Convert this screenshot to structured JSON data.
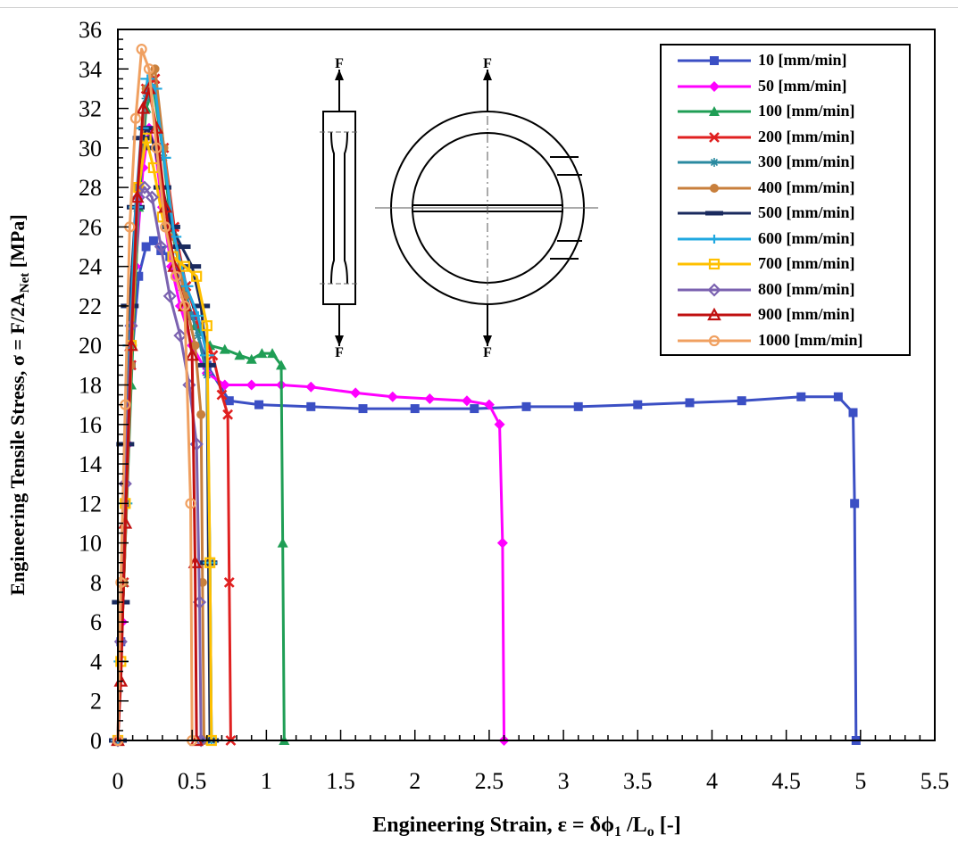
{
  "chart_data": {
    "type": "line",
    "title": "",
    "xlabel": "Engineering Strain, ε = δϕ₁ /Lₒ [-]",
    "ylabel": "Engineering Tensile Stress, σ = F/2A_Net [MPa]",
    "xlim": [
      0,
      5.5
    ],
    "ylim": [
      0,
      36
    ],
    "x_ticks": [
      "0",
      "0.5",
      "1",
      "1.5",
      "2",
      "2.5",
      "3",
      "3.5",
      "4",
      "4.5",
      "5",
      "5.5"
    ],
    "y_ticks": [
      "0",
      "2",
      "4",
      "6",
      "8",
      "10",
      "12",
      "14",
      "16",
      "18",
      "20",
      "22",
      "24",
      "26",
      "28",
      "30",
      "32",
      "34",
      "36"
    ],
    "grid": false,
    "legend_position": "top-right",
    "inset": {
      "force_label": "F"
    },
    "series": [
      {
        "name": "10 [mm/min]",
        "color": "#3b4fc4",
        "marker": "square",
        "x": [
          0,
          0.02,
          0.05,
          0.09,
          0.14,
          0.19,
          0.24,
          0.29,
          0.35,
          0.42,
          0.5,
          0.6,
          0.75,
          0.95,
          1.3,
          1.65,
          2.0,
          2.4,
          2.75,
          3.1,
          3.5,
          3.85,
          4.2,
          4.6,
          4.85,
          4.95,
          4.96,
          4.97
        ],
        "y": [
          0,
          5,
          12,
          19,
          23.5,
          25,
          25.3,
          24.8,
          24.5,
          23.5,
          21.5,
          19,
          17.2,
          17,
          16.9,
          16.8,
          16.8,
          16.8,
          16.9,
          16.9,
          17,
          17.1,
          17.2,
          17.4,
          17.4,
          16.6,
          12,
          0
        ]
      },
      {
        "name": "50 [mm/min]",
        "color": "#ff00ff",
        "marker": "diamond",
        "x": [
          0,
          0.03,
          0.07,
          0.12,
          0.17,
          0.21,
          0.25,
          0.3,
          0.36,
          0.42,
          0.5,
          0.6,
          0.72,
          0.9,
          1.1,
          1.3,
          1.6,
          1.85,
          2.1,
          2.35,
          2.5,
          2.57,
          2.59,
          2.6
        ],
        "y": [
          0,
          6,
          15,
          24,
          29,
          31,
          30,
          27,
          24,
          22,
          20,
          18.6,
          18,
          18,
          18,
          17.9,
          17.6,
          17.4,
          17.3,
          17.2,
          17,
          16,
          10,
          0
        ]
      },
      {
        "name": "100 [mm/min]",
        "color": "#1f9e55",
        "marker": "triangle",
        "x": [
          0,
          0.04,
          0.09,
          0.14,
          0.19,
          0.24,
          0.3,
          0.36,
          0.44,
          0.52,
          0.62,
          0.72,
          0.82,
          0.9,
          0.97,
          1.04,
          1.1,
          1.11,
          1.12
        ],
        "y": [
          0,
          8,
          18,
          27,
          32,
          33,
          30,
          26,
          23,
          21,
          20,
          19.8,
          19.5,
          19.3,
          19.6,
          19.6,
          19,
          10,
          0
        ]
      },
      {
        "name": "200 [mm/min]",
        "color": "#e02020",
        "marker": "x",
        "x": [
          0,
          0.04,
          0.09,
          0.14,
          0.19,
          0.25,
          0.31,
          0.38,
          0.46,
          0.55,
          0.64,
          0.7,
          0.74,
          0.75,
          0.76
        ],
        "y": [
          0,
          8,
          19,
          28,
          33,
          33.5,
          30,
          26,
          23,
          21,
          19.5,
          17.5,
          16.5,
          8,
          0
        ]
      },
      {
        "name": "300 [mm/min]",
        "color": "#2a8aa0",
        "marker": "asterisk",
        "x": [
          0,
          0.04,
          0.09,
          0.14,
          0.19,
          0.25,
          0.31,
          0.38,
          0.46,
          0.54,
          0.6,
          0.62,
          0.63
        ],
        "y": [
          0,
          8,
          19,
          28,
          32.5,
          33,
          29.5,
          25.5,
          22.5,
          20.5,
          18.5,
          9,
          0
        ]
      },
      {
        "name": "400 [mm/min]",
        "color": "#c87f3c",
        "marker": "circle",
        "x": [
          0,
          0.04,
          0.09,
          0.14,
          0.19,
          0.25,
          0.31,
          0.38,
          0.45,
          0.52,
          0.56,
          0.57,
          0.58
        ],
        "y": [
          0,
          8,
          19,
          28,
          33,
          34,
          30,
          25.5,
          22.5,
          20,
          16.5,
          8,
          0
        ]
      },
      {
        "name": "500 [mm/min]",
        "color": "#1a2a5e",
        "marker": "bar",
        "x": [
          0,
          0.02,
          0.05,
          0.08,
          0.12,
          0.16,
          0.2,
          0.25,
          0.3,
          0.36,
          0.43,
          0.5,
          0.56,
          0.6,
          0.61,
          0.62
        ],
        "y": [
          0,
          7,
          15,
          22,
          27,
          30.5,
          31,
          30,
          28,
          26,
          25,
          24,
          22,
          19,
          9,
          0
        ]
      },
      {
        "name": "600 [mm/min]",
        "color": "#20a8e0",
        "marker": "plus",
        "x": [
          0,
          0.02,
          0.05,
          0.08,
          0.12,
          0.16,
          0.2,
          0.25,
          0.31,
          0.38,
          0.46,
          0.54,
          0.6,
          0.62,
          0.63
        ],
        "y": [
          0,
          4,
          12,
          20,
          27,
          31,
          33.5,
          33,
          29.5,
          25.5,
          23,
          21.5,
          19.5,
          9,
          0
        ]
      },
      {
        "name": "700 [mm/min]",
        "color": "#ffc000",
        "marker": "square-open",
        "x": [
          0,
          0.02,
          0.05,
          0.09,
          0.14,
          0.19,
          0.24,
          0.3,
          0.37,
          0.45,
          0.53,
          0.6,
          0.62,
          0.63
        ],
        "y": [
          0,
          4,
          12,
          20,
          28,
          30.5,
          29,
          26.5,
          24.5,
          24,
          23.5,
          21,
          9,
          0
        ]
      },
      {
        "name": "800 [mm/min]",
        "color": "#7b62b0",
        "marker": "diamond-open",
        "x": [
          0,
          0.02,
          0.05,
          0.09,
          0.14,
          0.18,
          0.23,
          0.29,
          0.35,
          0.42,
          0.48,
          0.53,
          0.55,
          0.56
        ],
        "y": [
          0,
          5,
          13,
          21,
          27.5,
          28,
          27.5,
          25,
          22.5,
          20.5,
          18,
          15,
          7,
          0
        ]
      },
      {
        "name": "900 [mm/min]",
        "color": "#c01010",
        "marker": "triangle-open",
        "x": [
          0,
          0.02,
          0.05,
          0.09,
          0.13,
          0.17,
          0.21,
          0.26,
          0.32,
          0.38,
          0.45,
          0.5,
          0.52,
          0.53
        ],
        "y": [
          0,
          3,
          11,
          20,
          27.5,
          32,
          33,
          31,
          27,
          24,
          22,
          19.5,
          9,
          0
        ]
      },
      {
        "name": "1000 [mm/min]",
        "color": "#f0a060",
        "marker": "circle-open",
        "x": [
          0,
          0.02,
          0.05,
          0.08,
          0.12,
          0.16,
          0.21,
          0.26,
          0.32,
          0.39,
          0.45,
          0.49,
          0.5
        ],
        "y": [
          0,
          8,
          17,
          26,
          31.5,
          35,
          34,
          30,
          26,
          23.5,
          22,
          12,
          0
        ]
      }
    ]
  }
}
